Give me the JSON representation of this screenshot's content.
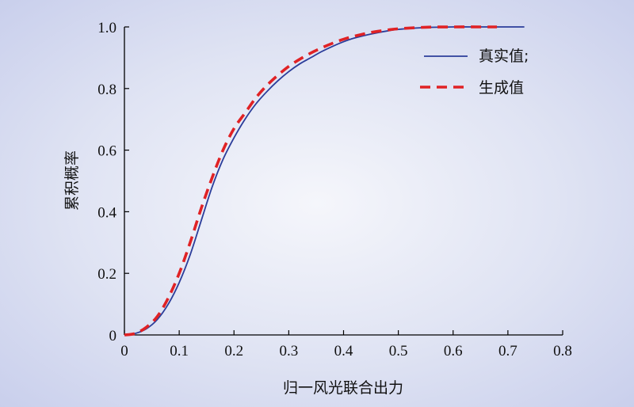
{
  "chart_data": {
    "type": "line",
    "xlabel": "归一风光联合出力",
    "ylabel": "累积概率",
    "xlim": [
      0,
      0.8
    ],
    "ylim": [
      0,
      1.0
    ],
    "xticks": [
      0,
      0.1,
      0.2,
      0.3,
      0.4,
      0.5,
      0.6,
      0.7,
      0.8
    ],
    "xtick_labels": [
      "0",
      "0.1",
      "0.2",
      "0.3",
      "0.4",
      "0.5",
      "0.6",
      "0.7",
      "0.8"
    ],
    "yticks": [
      0,
      0.2,
      0.4,
      0.6,
      0.8,
      1.0
    ],
    "ytick_labels": [
      "0",
      "0.2",
      "0.4",
      "0.6",
      "0.8",
      "1.0"
    ],
    "grid": false,
    "legend_position": "top-right",
    "series": [
      {
        "name": "真实值;",
        "color": "#2b3d9a",
        "style": "solid",
        "x": [
          0,
          0.02,
          0.04,
          0.06,
          0.08,
          0.1,
          0.12,
          0.14,
          0.16,
          0.18,
          0.2,
          0.22,
          0.24,
          0.26,
          0.28,
          0.3,
          0.32,
          0.34,
          0.36,
          0.38,
          0.4,
          0.42,
          0.45,
          0.48,
          0.5,
          0.55,
          0.6,
          0.65,
          0.7,
          0.73
        ],
        "y": [
          0,
          0.005,
          0.02,
          0.05,
          0.1,
          0.17,
          0.26,
          0.37,
          0.48,
          0.57,
          0.64,
          0.7,
          0.75,
          0.79,
          0.825,
          0.855,
          0.88,
          0.9,
          0.92,
          0.937,
          0.952,
          0.964,
          0.977,
          0.987,
          0.992,
          0.998,
          1.0,
          1.0,
          1.0,
          1.0
        ]
      },
      {
        "name": "生成值",
        "color": "#e02225",
        "style": "dashed",
        "x": [
          0,
          0.02,
          0.04,
          0.06,
          0.08,
          0.1,
          0.12,
          0.14,
          0.16,
          0.18,
          0.2,
          0.22,
          0.24,
          0.26,
          0.28,
          0.3,
          0.32,
          0.34,
          0.36,
          0.38,
          0.4,
          0.42,
          0.45,
          0.48,
          0.5,
          0.55,
          0.6,
          0.65,
          0.68
        ],
        "y": [
          0,
          0.005,
          0.025,
          0.06,
          0.12,
          0.2,
          0.3,
          0.41,
          0.51,
          0.6,
          0.67,
          0.72,
          0.77,
          0.81,
          0.843,
          0.872,
          0.895,
          0.915,
          0.932,
          0.947,
          0.96,
          0.97,
          0.982,
          0.99,
          0.994,
          0.999,
          1.0,
          1.0,
          1.0
        ]
      }
    ]
  }
}
